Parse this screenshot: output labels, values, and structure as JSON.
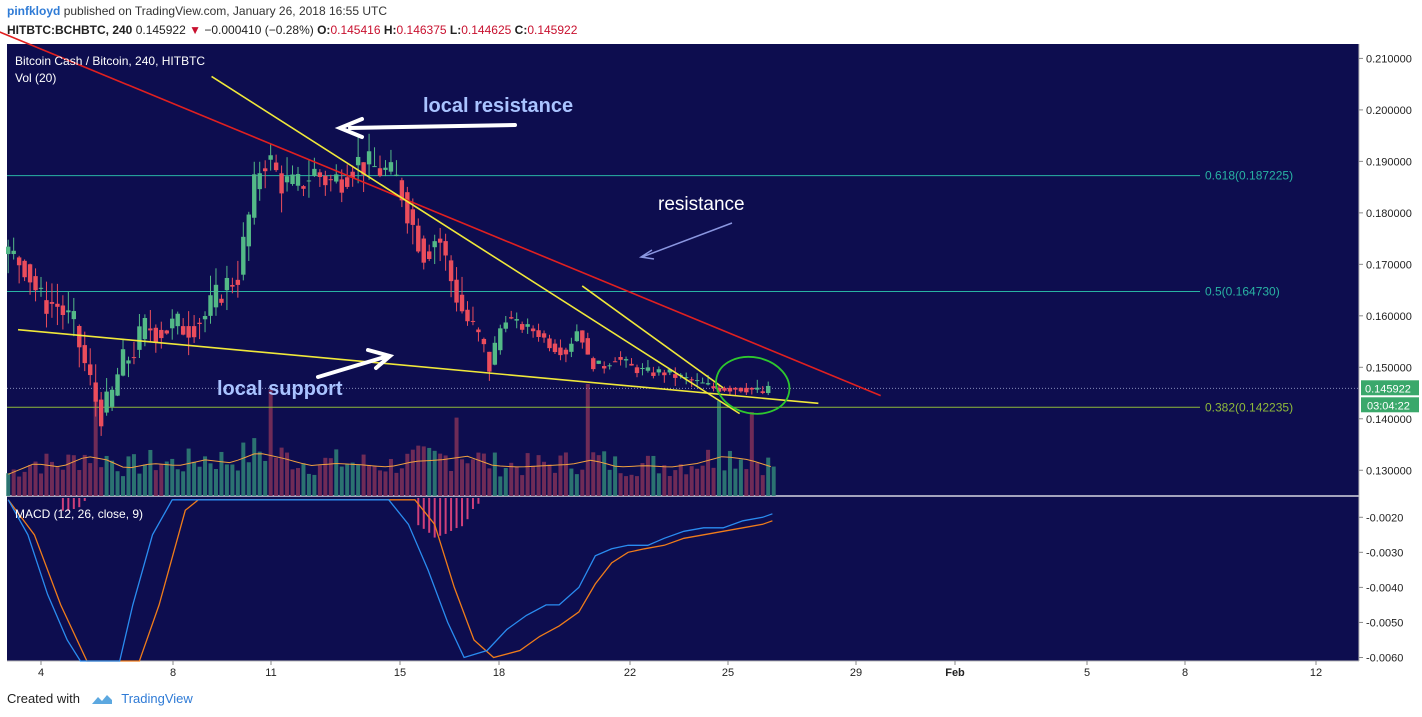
{
  "header": {
    "author": "pinfkloyd",
    "published": "published on TradingView.com, January 26, 2018 16:55 UTC",
    "symbol": "HITBTC:BCHBTC, 240",
    "last": "0.145922",
    "change": "−0.000410 (−0.28%)",
    "o_label": "O:",
    "o": "0.145416",
    "h_label": "H:",
    "h": "0.146375",
    "l_label": "L:",
    "l": "0.144625",
    "c_label": "C:",
    "c": "0.145922"
  },
  "footer": {
    "created": "Created with",
    "brand": "TradingView"
  },
  "colors": {
    "background": "#0d0d4f",
    "up": "#53b987",
    "down": "#eb4d5c",
    "fib": "#29b3a3",
    "fib382": "#8fba3a",
    "trend_red": "#e02020",
    "trend_yellow": "#f0e83a",
    "arrow": "#ffffff",
    "annot": "#a9c3ff",
    "ellipse": "#2ec82e",
    "macd": "#2a8cf0",
    "signal": "#f07c1a"
  },
  "chart_data": {
    "type": "candlestick",
    "title": "Bitcoin Cash / Bitcoin, 240, HITBTC",
    "volume_label": "Vol (20)",
    "macd_label": "MACD (12, 26, close, 9)",
    "price_ylim": [
      0.125,
      0.2128
    ],
    "price_ticks": [
      "0.210000",
      "0.200000",
      "0.190000",
      "0.180000",
      "0.170000",
      "0.160000",
      "0.150000",
      "0.140000",
      "0.130000"
    ],
    "macd_ylim": [
      -0.0061,
      -0.00145
    ],
    "macd_ticks": [
      "-0.0020",
      "-0.0030",
      "-0.0040",
      "-0.0050",
      "-0.0060"
    ],
    "x_ticks": [
      "4",
      "8",
      "11",
      "15",
      "18",
      "22",
      "25",
      "29",
      "Feb",
      "5",
      "8",
      "12"
    ],
    "last_price": "0.145922",
    "countdown": "03:04:22",
    "fib_levels": [
      {
        "ratio": "0.618",
        "price": 0.187225,
        "label": "0.618(0.187225)"
      },
      {
        "ratio": "0.5",
        "price": 0.16473,
        "label": "0.5(0.164730)"
      },
      {
        "ratio": "0.382",
        "price": 0.142235,
        "label": "0.382(0.142235)"
      }
    ],
    "annotations": {
      "local_resistance": "local resistance",
      "resistance": "resistance",
      "local_support": "local support"
    },
    "price_path": [
      [
        3.0,
        0.172
      ],
      [
        3.5,
        0.17
      ],
      [
        4.0,
        0.163
      ],
      [
        4.5,
        0.162
      ],
      [
        5.0,
        0.158
      ],
      [
        5.4,
        0.149
      ],
      [
        5.8,
        0.141
      ],
      [
        6.1,
        0.143
      ],
      [
        6.4,
        0.15
      ],
      [
        6.8,
        0.153
      ],
      [
        7.2,
        0.158
      ],
      [
        7.6,
        0.157
      ],
      [
        8.0,
        0.158
      ],
      [
        8.5,
        0.158
      ],
      [
        9.0,
        0.16
      ],
      [
        9.5,
        0.165
      ],
      [
        10.0,
        0.168
      ],
      [
        10.3,
        0.178
      ],
      [
        10.6,
        0.188
      ],
      [
        10.9,
        0.191
      ],
      [
        11.3,
        0.186
      ],
      [
        11.8,
        0.185
      ],
      [
        12.3,
        0.188
      ],
      [
        12.8,
        0.186
      ],
      [
        13.2,
        0.187
      ],
      [
        13.6,
        0.19
      ],
      [
        14.0,
        0.189
      ],
      [
        14.5,
        0.188
      ],
      [
        14.9,
        0.186
      ],
      [
        15.3,
        0.178
      ],
      [
        15.7,
        0.172
      ],
      [
        16.1,
        0.176
      ],
      [
        16.5,
        0.167
      ],
      [
        16.9,
        0.16
      ],
      [
        17.3,
        0.156
      ],
      [
        17.7,
        0.15
      ],
      [
        18.1,
        0.16
      ],
      [
        18.6,
        0.158
      ],
      [
        19.1,
        0.157
      ],
      [
        19.6,
        0.154
      ],
      [
        20.0,
        0.153
      ],
      [
        20.4,
        0.158
      ],
      [
        20.7,
        0.151
      ],
      [
        21.1,
        0.15
      ],
      [
        21.5,
        0.152
      ],
      [
        22.0,
        0.15
      ],
      [
        22.5,
        0.149
      ],
      [
        23.0,
        0.149
      ],
      [
        23.5,
        0.148
      ],
      [
        24.0,
        0.147
      ],
      [
        24.5,
        0.146
      ],
      [
        25.0,
        0.146
      ],
      [
        25.5,
        0.146
      ],
      [
        26.0,
        0.145
      ],
      [
        26.3,
        0.1459
      ]
    ],
    "volume_profile": [
      [
        3.0,
        0.3
      ],
      [
        3.8,
        0.45
      ],
      [
        4.6,
        0.4
      ],
      [
        5.4,
        0.55
      ],
      [
        6.0,
        0.5
      ],
      [
        6.6,
        0.38
      ],
      [
        7.4,
        0.45
      ],
      [
        8.2,
        0.42
      ],
      [
        9.0,
        0.5
      ],
      [
        9.8,
        0.46
      ],
      [
        10.6,
        0.6
      ],
      [
        11.4,
        0.52
      ],
      [
        12.2,
        0.42
      ],
      [
        13.0,
        0.45
      ],
      [
        13.8,
        0.43
      ],
      [
        14.6,
        0.4
      ],
      [
        15.4,
        0.48
      ],
      [
        16.2,
        0.5
      ],
      [
        17.0,
        0.55
      ],
      [
        17.8,
        0.42
      ],
      [
        18.6,
        0.4
      ],
      [
        19.4,
        0.42
      ],
      [
        20.2,
        0.44
      ],
      [
        20.8,
        0.5
      ],
      [
        21.6,
        0.4
      ],
      [
        22.4,
        0.42
      ],
      [
        23.2,
        0.4
      ],
      [
        24.0,
        0.45
      ],
      [
        24.8,
        0.55
      ],
      [
        25.6,
        0.5
      ],
      [
        26.3,
        0.4
      ]
    ],
    "volume_spikes": [
      [
        5.6,
        0.85
      ],
      [
        11.0,
        0.95
      ],
      [
        16.7,
        0.7
      ],
      [
        20.6,
        1.0
      ],
      [
        24.7,
        0.85
      ],
      [
        25.6,
        0.75
      ]
    ],
    "macd_line": [
      [
        3.0,
        -0.0015
      ],
      [
        3.6,
        -0.0025
      ],
      [
        4.2,
        -0.0042
      ],
      [
        4.8,
        -0.0055
      ],
      [
        5.2,
        -0.0061
      ],
      [
        6.4,
        -0.0061
      ],
      [
        6.8,
        -0.0045
      ],
      [
        7.4,
        -0.0025
      ],
      [
        8.0,
        -0.0015
      ],
      [
        14.6,
        -0.0015
      ],
      [
        15.2,
        -0.0022
      ],
      [
        15.8,
        -0.0035
      ],
      [
        16.4,
        -0.005
      ],
      [
        16.9,
        -0.006
      ],
      [
        17.6,
        -0.0058
      ],
      [
        18.2,
        -0.0052
      ],
      [
        18.8,
        -0.0048
      ],
      [
        19.4,
        -0.0045
      ],
      [
        19.8,
        -0.0045
      ],
      [
        20.4,
        -0.004
      ],
      [
        20.9,
        -0.0031
      ],
      [
        21.4,
        -0.0029
      ],
      [
        21.9,
        -0.0028
      ],
      [
        22.5,
        -0.0028
      ],
      [
        23.0,
        -0.0026
      ],
      [
        23.6,
        -0.0024
      ],
      [
        24.2,
        -0.0023
      ],
      [
        24.8,
        -0.0023
      ],
      [
        25.4,
        -0.0021
      ],
      [
        26.0,
        -0.002
      ],
      [
        26.3,
        -0.0019
      ]
    ],
    "signal_line": [
      [
        3.0,
        -0.0015
      ],
      [
        3.8,
        -0.0025
      ],
      [
        4.6,
        -0.0045
      ],
      [
        5.4,
        -0.0061
      ],
      [
        7.0,
        -0.0061
      ],
      [
        7.6,
        -0.0045
      ],
      [
        8.4,
        -0.0018
      ],
      [
        8.8,
        -0.0015
      ],
      [
        15.4,
        -0.0015
      ],
      [
        16.0,
        -0.0022
      ],
      [
        16.6,
        -0.004
      ],
      [
        17.2,
        -0.0055
      ],
      [
        17.8,
        -0.006
      ],
      [
        18.6,
        -0.0058
      ],
      [
        19.2,
        -0.0054
      ],
      [
        19.8,
        -0.0051
      ],
      [
        20.4,
        -0.0047
      ],
      [
        20.9,
        -0.0039
      ],
      [
        21.4,
        -0.0033
      ],
      [
        21.9,
        -0.003
      ],
      [
        22.4,
        -0.0029
      ],
      [
        23.0,
        -0.0028
      ],
      [
        23.6,
        -0.0026
      ],
      [
        24.2,
        -0.0025
      ],
      [
        24.8,
        -0.0024
      ],
      [
        25.4,
        -0.0023
      ],
      [
        26.0,
        -0.0022
      ],
      [
        26.3,
        -0.0021
      ]
    ],
    "trendlines": {
      "red_resistance": [
        [
          2.6,
          0.2155
        ],
        [
          29.6,
          0.1445
        ]
      ],
      "yellow_local_resistance": [
        [
          9.2,
          0.2065
        ],
        [
          25.3,
          0.141
        ]
      ],
      "yellow_local_support": [
        [
          3.3,
          0.1573
        ],
        [
          27.7,
          0.143
        ]
      ],
      "yellow_upper_recent": [
        [
          20.5,
          0.1658
        ],
        [
          24.8,
          0.146
        ]
      ]
    }
  }
}
